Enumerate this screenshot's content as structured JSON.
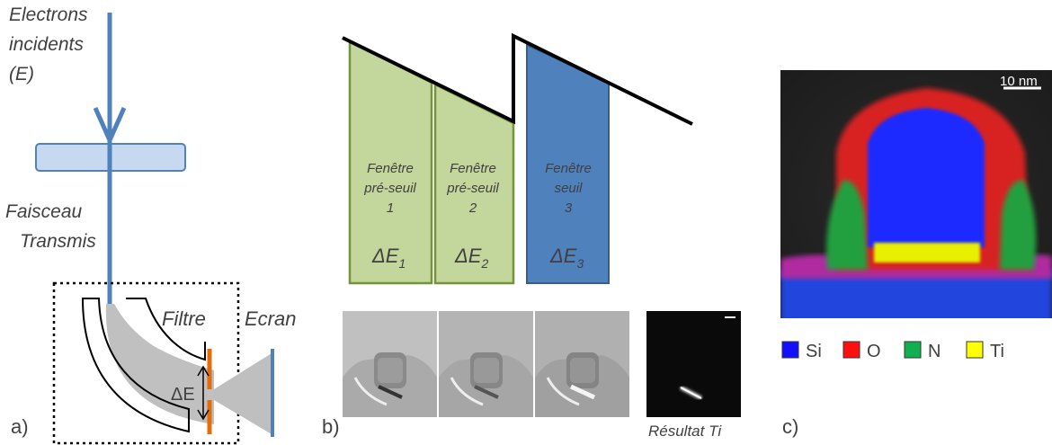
{
  "panel_a": {
    "label": "a)",
    "incident_line1": "Electrons",
    "incident_line2": "incidents",
    "incident_line3": "(E)",
    "transmitted_line1": "Faisceau",
    "transmitted_line2": "Transmis",
    "filter_label": "Filtre",
    "screen_label": "Ecran",
    "delta_e_label": "ΔE"
  },
  "panel_b": {
    "label": "b)",
    "windows": [
      {
        "line1": "Fenêtre",
        "line2": "pré-seuil",
        "line3": "1",
        "delta_symbol": "ΔE",
        "delta_sub": "1"
      },
      {
        "line1": "Fenêtre",
        "line2": "pré-seuil",
        "line3": "2",
        "delta_symbol": "ΔE",
        "delta_sub": "2"
      },
      {
        "line1": "Fenêtre",
        "line2": "seuil",
        "line3": "3",
        "delta_symbol": "ΔE",
        "delta_sub": "3"
      }
    ],
    "result_caption": "Résultat Ti"
  },
  "panel_c": {
    "label": "c)",
    "scalebar_label": "10 nm",
    "legend": [
      {
        "name": "Si",
        "color": "#1010ff"
      },
      {
        "name": "O",
        "color": "#ff1010"
      },
      {
        "name": "N",
        "color": "#10b050"
      },
      {
        "name": "Ti",
        "color": "#ffff00"
      }
    ]
  },
  "colors": {
    "beam": "#4f81bd",
    "window_green": "#c3d69b",
    "window_green_border": "#76923c",
    "window_blue": "#4f81bd",
    "slit": "#e46c0a"
  }
}
